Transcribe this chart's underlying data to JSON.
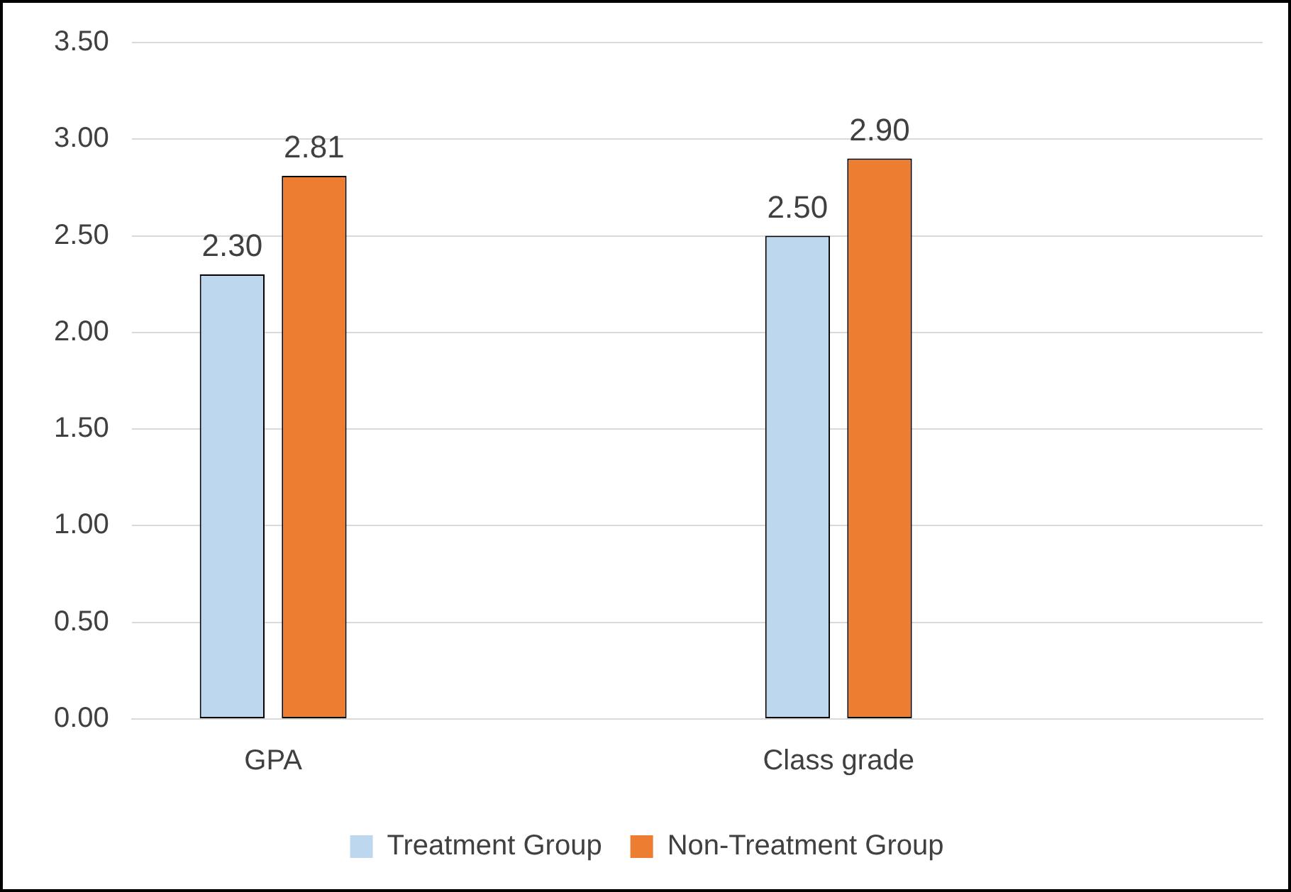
{
  "chart_data": {
    "type": "bar",
    "categories": [
      "GPA",
      null,
      "Class grade",
      null
    ],
    "series": [
      {
        "name": "Treatment Group",
        "color": "#bdd7ee",
        "values": [
          2.3,
          null,
          2.5,
          null
        ],
        "value_labels": [
          "2.30",
          null,
          "2.50",
          null
        ]
      },
      {
        "name": "Non-Treatment Group",
        "color": "#ed7d31",
        "values": [
          2.81,
          null,
          2.9,
          null
        ],
        "value_labels": [
          "2.81",
          null,
          "2.90",
          null
        ]
      }
    ],
    "ylim": [
      0,
      3.5
    ],
    "yticks": [
      {
        "value": 0,
        "label": "0.00"
      },
      {
        "value": 0.5,
        "label": "0.50"
      },
      {
        "value": 1,
        "label": "1.00"
      },
      {
        "value": 1.5,
        "label": "1.50"
      },
      {
        "value": 2,
        "label": "2.00"
      },
      {
        "value": 2.5,
        "label": "2.50"
      },
      {
        "value": 3,
        "label": "3.00"
      },
      {
        "value": 3.5,
        "label": "3.50"
      }
    ],
    "grid": "y",
    "legend": "bottom"
  }
}
